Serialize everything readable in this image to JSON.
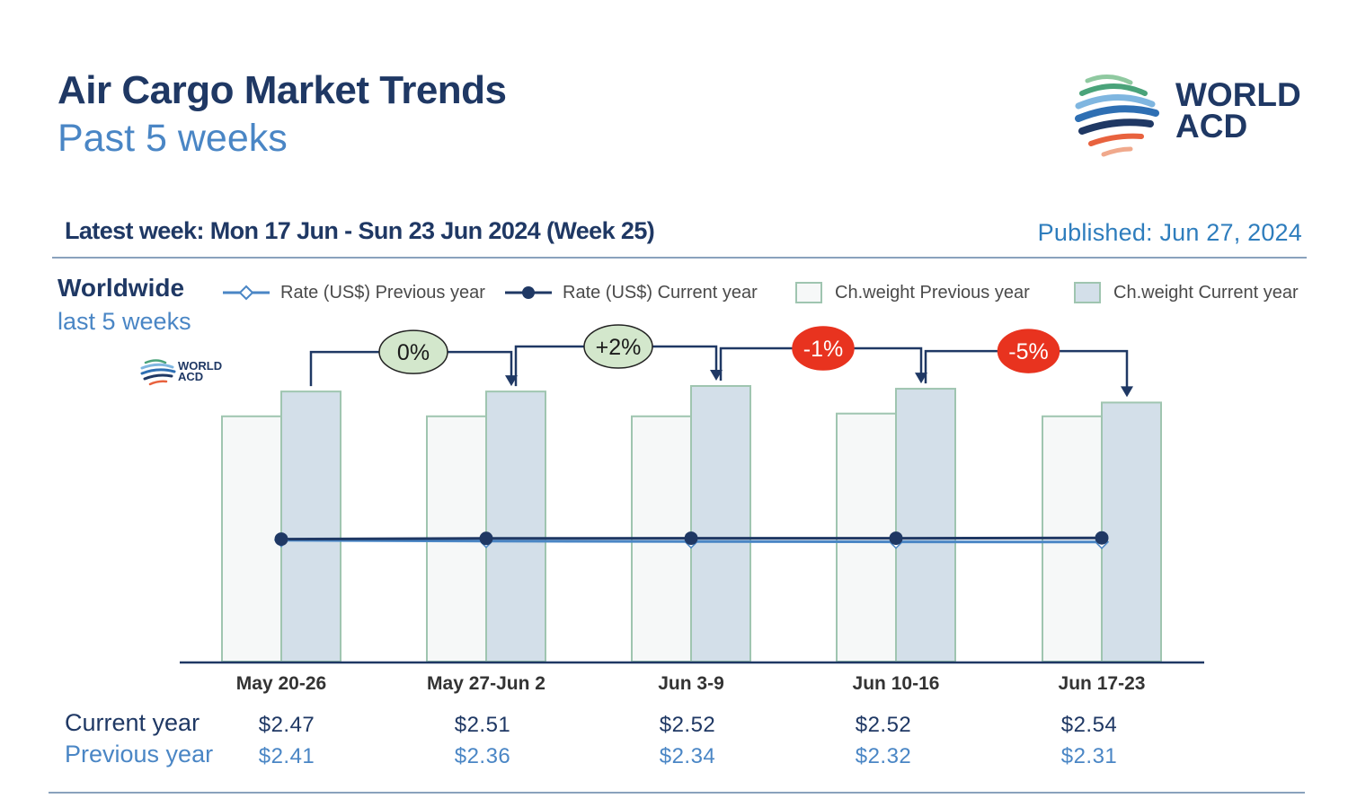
{
  "header": {
    "title": "Air Cargo Market Trends",
    "subtitle": "Past 5 weeks",
    "logo_line1": "WORLD",
    "logo_line2": "ACD"
  },
  "info": {
    "latest_week": "Latest week: Mon 17 Jun - Sun 23 Jun 2024 (Week 25)",
    "published": "Published: Jun 27, 2024"
  },
  "panel": {
    "region": "Worldwide",
    "period": "last 5 weeks"
  },
  "legend": [
    {
      "label": "Rate (US$) Previous year",
      "icon": "open-diamond-line-icon"
    },
    {
      "label": "Rate (US$) Current year",
      "icon": "filled-dot-line-icon"
    },
    {
      "label": "Ch.weight Previous year",
      "icon": "light-box-icon"
    },
    {
      "label": "Ch.weight Current year",
      "icon": "shaded-box-icon"
    }
  ],
  "table": {
    "current_label": "Current year",
    "previous_label": "Previous year",
    "current_values": [
      "$2.47",
      "$2.51",
      "$2.52",
      "$2.52",
      "$2.54"
    ],
    "previous_values": [
      "$2.41",
      "$2.36",
      "$2.34",
      "$2.32",
      "$2.31"
    ]
  },
  "colors": {
    "navy": "#1f3864",
    "light_blue": "#4a86c5",
    "bar_prev_fill": "#f6f8f8",
    "bar_cur_fill": "#d3dfe9",
    "bar_border": "#9fc5b0",
    "badge_green": "#d3e7cc",
    "badge_red": "#e8331f",
    "rule": "#8aa2bd"
  },
  "chart_data": {
    "type": "bar",
    "categories": [
      "May 20-26",
      "May 27-Jun 2",
      "Jun 3-9",
      "Jun 10-16",
      "Jun 17-23"
    ],
    "value_scale": "relative index of chargeable weight (no axis printed)",
    "series": [
      {
        "name": "Ch.weight Previous year",
        "type": "bar",
        "values": [
          89,
          89,
          89,
          90,
          89
        ]
      },
      {
        "name": "Ch.weight Current year",
        "type": "bar",
        "values": [
          98,
          98,
          100,
          99,
          94
        ]
      },
      {
        "name": "Rate (US$) Previous year",
        "type": "line",
        "values": [
          2.41,
          2.36,
          2.34,
          2.32,
          2.31
        ]
      },
      {
        "name": "Rate (US$) Current year",
        "type": "line",
        "values": [
          2.47,
          2.51,
          2.52,
          2.52,
          2.54
        ]
      }
    ],
    "week_on_week_change": [
      {
        "from": 0,
        "to": 1,
        "label": "0%",
        "tone": "positive"
      },
      {
        "from": 1,
        "to": 2,
        "label": "+2%",
        "tone": "positive"
      },
      {
        "from": 2,
        "to": 3,
        "label": "-1%",
        "tone": "negative"
      },
      {
        "from": 3,
        "to": 4,
        "label": "-5%",
        "tone": "negative"
      }
    ],
    "grid": false,
    "legend_position": "top"
  }
}
